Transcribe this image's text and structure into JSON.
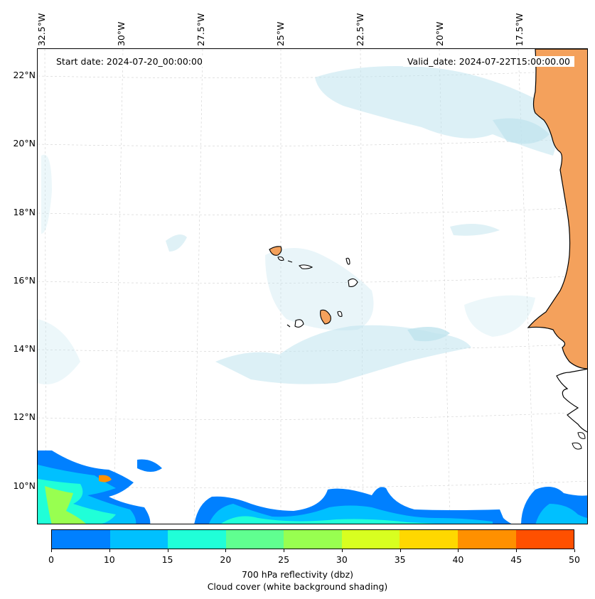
{
  "map": {
    "lon_labels": [
      "32.5°W",
      "30°W",
      "27.5°W",
      "25°W",
      "22.5°W",
      "20°W",
      "17.5°W"
    ],
    "lat_labels": [
      "22°N",
      "20°N",
      "18°N",
      "16°N",
      "14°N",
      "12°N",
      "10°N"
    ],
    "extent": {
      "lon_min": -33.0,
      "lon_max": -15.5,
      "lat_min": 8.9,
      "lat_max": 22.8
    },
    "start_date": "Start date: 2024-07-20_00:00:00",
    "valid_date": "Valid_date: 2024-07-22T15:00:00.00"
  },
  "colorbar": {
    "ticks": [
      "0",
      "10",
      "15",
      "20",
      "25",
      "30",
      "35",
      "40",
      "45",
      "50"
    ],
    "colors": [
      "#0080ff",
      "#00c0ff",
      "#20ffd8",
      "#60ff90",
      "#98ff50",
      "#d8ff20",
      "#ffd800",
      "#ff9000",
      "#ff5000"
    ],
    "title_line1": "700 hPa reflectivity (dbz)",
    "title_line2": "Cloud cover (white background shading)"
  },
  "colors": {
    "land": "#f4a15c",
    "cloud": "#bfe3ee",
    "coast": "#000000"
  }
}
